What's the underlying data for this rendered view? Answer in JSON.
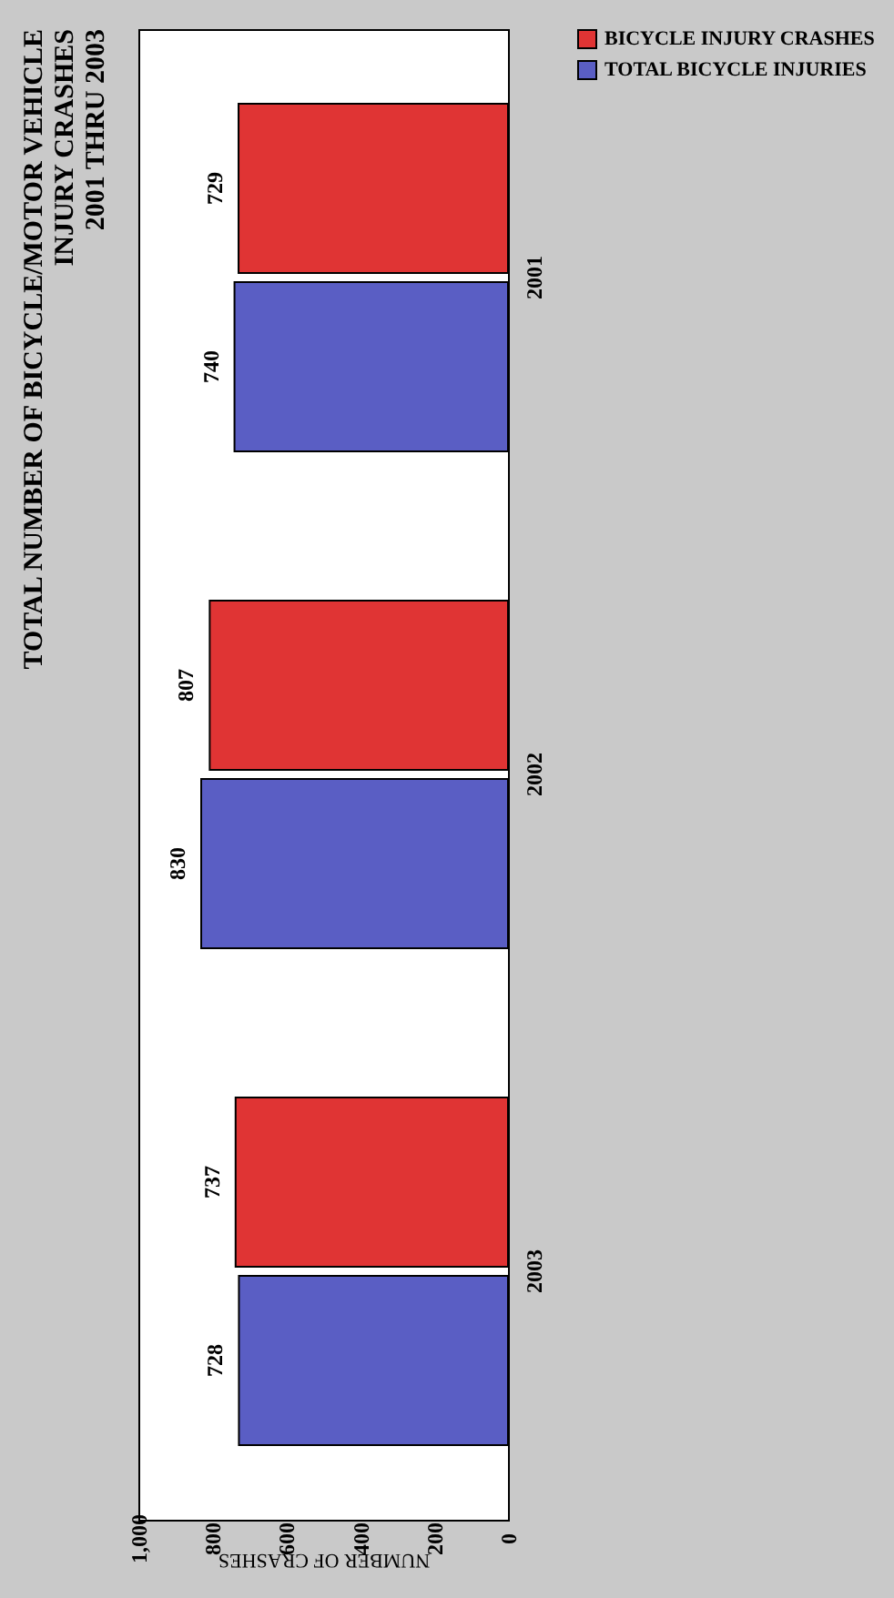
{
  "chart_data": {
    "type": "bar",
    "orientation": "horizontal",
    "title": [
      "TOTAL NUMBER OF BICYCLE/MOTOR VEHICLE",
      "INJURY CRASHES",
      "2001 THRU 2003"
    ],
    "xlabel": "NUMBER OF CRASHES",
    "categories": [
      "2001",
      "2002",
      "2003"
    ],
    "series": [
      {
        "name": "BICYCLE INJURY CRASHES",
        "color": "#e03434",
        "values": [
          729,
          807,
          737
        ]
      },
      {
        "name": "TOTAL BICYCLE INJURIES",
        "color": "#5a5ec4",
        "values": [
          740,
          830,
          728
        ]
      }
    ],
    "xlim": [
      1000,
      0
    ],
    "xticks": [
      {
        "value": 0,
        "label": "0"
      },
      {
        "value": 200,
        "label": "200"
      },
      {
        "value": 400,
        "label": "400"
      },
      {
        "value": 600,
        "label": "600"
      },
      {
        "value": 800,
        "label": "800"
      },
      {
        "value": 1000,
        "label": "1,000"
      }
    ],
    "data_labels": true,
    "grid": false,
    "legend": "right"
  }
}
